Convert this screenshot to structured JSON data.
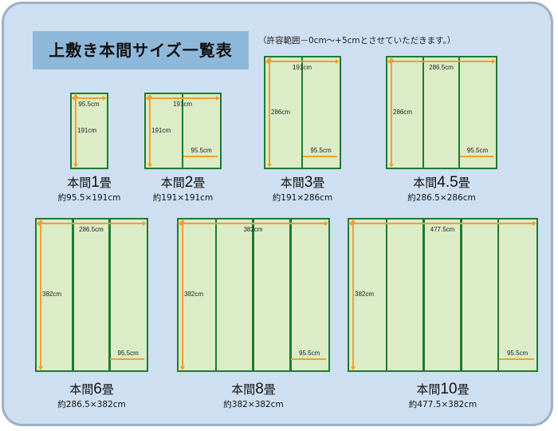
{
  "header": {
    "title": "上敷き本間サイズ一覧表",
    "note": "（許容範囲－0cm～+5cmとさせていただきます。）"
  },
  "colors": {
    "background": "#cfdff2",
    "title_box": "#8db8da",
    "mat_fill": "#dcecc6",
    "mat_border": "#1f7a30",
    "arrow": "#f0a030"
  },
  "mats": [
    {
      "prefix": "本間",
      "count": "1",
      "suffix": "畳",
      "size": "約95.5×191cm",
      "panels": 1,
      "width_label": "95.5cm",
      "height_label": "191cm",
      "panel_label": ""
    },
    {
      "prefix": "本間",
      "count": "2",
      "suffix": "畳",
      "size": "約191×191cm",
      "panels": 2,
      "width_label": "191cm",
      "height_label": "191cm",
      "panel_label": "95.5cm"
    },
    {
      "prefix": "本間",
      "count": "3",
      "suffix": "畳",
      "size": "約191×286cm",
      "panels": 2,
      "width_label": "191cm",
      "height_label": "286cm",
      "panel_label": "95.5cm"
    },
    {
      "prefix": "本間",
      "count": "4.5",
      "suffix": "畳",
      "size": "約286.5×286cm",
      "panels": 3,
      "width_label": "286.5cm",
      "height_label": "286cm",
      "panel_label": "95.5cm"
    },
    {
      "prefix": "本間",
      "count": "6",
      "suffix": "畳",
      "size": "約286.5×382cm",
      "panels": 3,
      "width_label": "286.5cm",
      "height_label": "382cm",
      "panel_label": "95.5cm"
    },
    {
      "prefix": "本間",
      "count": "8",
      "suffix": "畳",
      "size": "約382×382cm",
      "panels": 4,
      "width_label": "382cm",
      "height_label": "382cm",
      "panel_label": "95.5cm"
    },
    {
      "prefix": "本間",
      "count": "10",
      "suffix": "畳",
      "size": "約477.5×382cm",
      "panels": 5,
      "width_label": "477.5cm",
      "height_label": "382cm",
      "panel_label": "95.5cm"
    }
  ]
}
